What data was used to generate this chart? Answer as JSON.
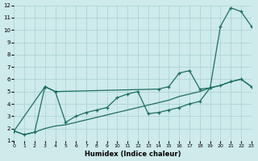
{
  "xlabel": "Humidex (Indice chaleur)",
  "background_color": "#ceeaea",
  "grid_color": "#aacfcf",
  "line_color": "#1a6e62",
  "xlim": [
    0,
    23
  ],
  "ylim": [
    1,
    12
  ],
  "xticks": [
    0,
    1,
    2,
    3,
    4,
    5,
    6,
    7,
    8,
    9,
    10,
    11,
    12,
    13,
    14,
    15,
    16,
    17,
    18,
    19,
    20,
    21,
    22,
    23
  ],
  "yticks": [
    1,
    2,
    3,
    4,
    5,
    6,
    7,
    8,
    9,
    10,
    11,
    12
  ],
  "line1_x": [
    0,
    1,
    2,
    3,
    4,
    5,
    6,
    7,
    8,
    9,
    10,
    11,
    12,
    13,
    14,
    15,
    16,
    17,
    18,
    19,
    20,
    21,
    22,
    23
  ],
  "line1_y": [
    1.8,
    1.5,
    1.7,
    2.0,
    2.2,
    2.3,
    2.5,
    2.7,
    2.9,
    3.1,
    3.3,
    3.5,
    3.7,
    3.9,
    4.1,
    4.3,
    4.6,
    4.8,
    5.0,
    5.3,
    5.5,
    5.8,
    6.0,
    5.4
  ],
  "line2_x": [
    0,
    1,
    2,
    3,
    4,
    5,
    6,
    7,
    8,
    9,
    10,
    11,
    12,
    13,
    14,
    15,
    16,
    17,
    18,
    19,
    20,
    21,
    22,
    23
  ],
  "line2_y": [
    1.8,
    1.5,
    1.7,
    5.4,
    5.0,
    2.5,
    3.0,
    3.3,
    3.5,
    3.7,
    4.5,
    4.8,
    5.0,
    3.2,
    3.3,
    3.5,
    3.7,
    4.0,
    4.2,
    5.3,
    5.5,
    5.8,
    6.0,
    5.4
  ],
  "line3_x": [
    0,
    3,
    4,
    14,
    15,
    16,
    17,
    18,
    19,
    20,
    21,
    22,
    23
  ],
  "line3_y": [
    1.8,
    5.4,
    5.0,
    5.2,
    5.4,
    6.5,
    6.7,
    5.2,
    5.3,
    10.3,
    11.8,
    11.5,
    10.3
  ]
}
